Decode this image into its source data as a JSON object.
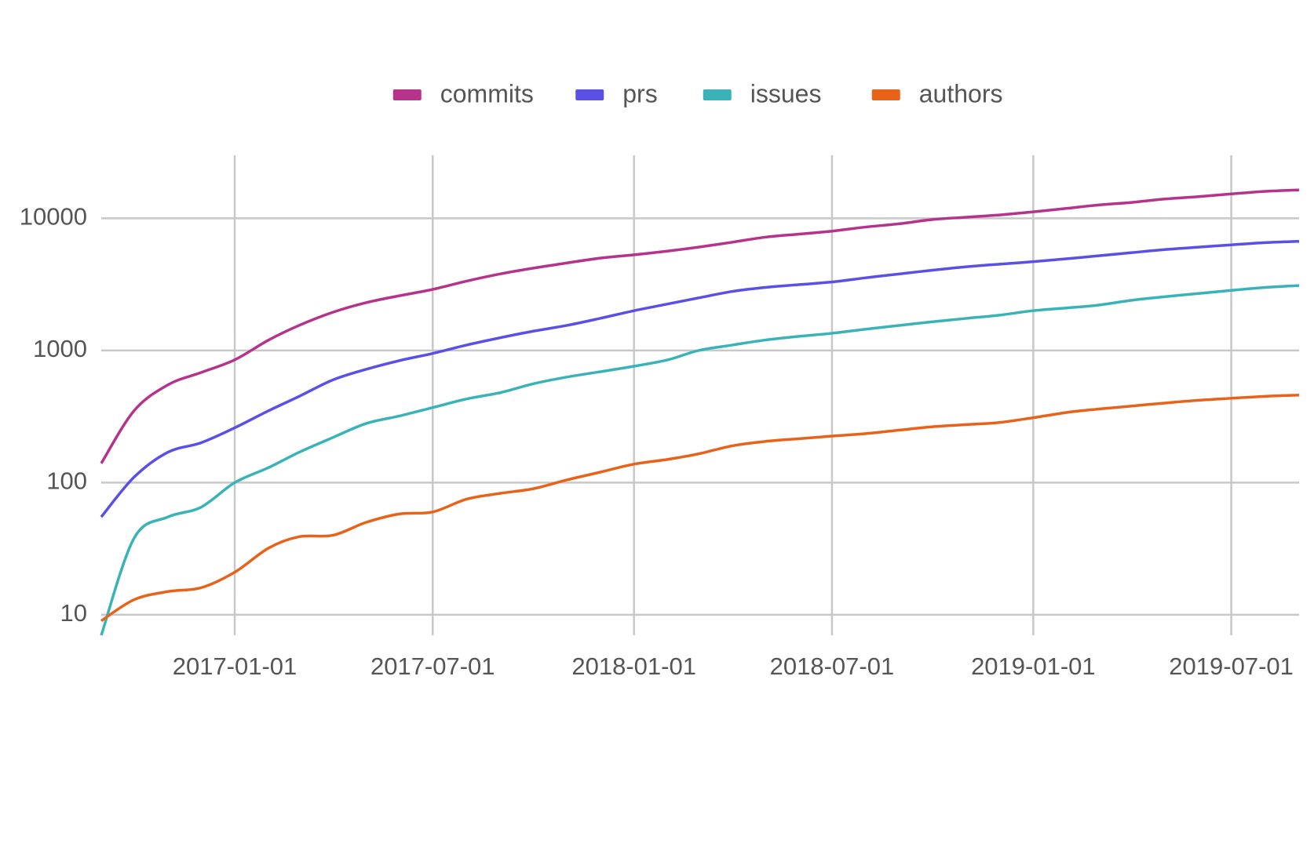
{
  "chart_data": {
    "type": "line",
    "log_y": true,
    "grid": true,
    "legend": "top",
    "x": [
      "2016-09-01",
      "2016-10-01",
      "2016-11-01",
      "2016-12-01",
      "2017-01-01",
      "2017-02-01",
      "2017-03-01",
      "2017-04-01",
      "2017-05-01",
      "2017-06-01",
      "2017-07-01",
      "2017-08-01",
      "2017-09-01",
      "2017-10-01",
      "2017-11-01",
      "2017-12-01",
      "2018-01-01",
      "2018-02-01",
      "2018-03-01",
      "2018-04-01",
      "2018-05-01",
      "2018-06-01",
      "2018-07-01",
      "2018-08-01",
      "2018-09-01",
      "2018-10-01",
      "2018-11-01",
      "2018-12-01",
      "2019-01-01",
      "2019-02-01",
      "2019-03-01",
      "2019-04-01",
      "2019-05-01",
      "2019-06-01",
      "2019-07-01",
      "2019-08-01",
      "2019-09-01"
    ],
    "xlim": [
      "2016-09-01",
      "2019-09-01"
    ],
    "xticks": [
      "2017-01-01",
      "2017-07-01",
      "2018-01-01",
      "2018-07-01",
      "2019-01-01",
      "2019-07-01"
    ],
    "ylim": [
      7,
      30000
    ],
    "yticks": [
      10,
      100,
      1000,
      10000
    ],
    "series": [
      {
        "name": "commits",
        "color": "#b5338a",
        "values": [
          140,
          350,
          550,
          680,
          850,
          1200,
          1550,
          1950,
          2300,
          2600,
          2900,
          3350,
          3800,
          4200,
          4600,
          5000,
          5300,
          5650,
          6050,
          6600,
          7200,
          7600,
          8000,
          8600,
          9100,
          9800,
          10200,
          10600,
          11200,
          11900,
          12600,
          13200,
          14000,
          14600,
          15300,
          16000,
          16400
        ]
      },
      {
        "name": "prs",
        "color": "#5a4fe6",
        "values": [
          55,
          110,
          170,
          200,
          260,
          350,
          450,
          600,
          720,
          840,
          950,
          1100,
          1250,
          1400,
          1550,
          1750,
          2000,
          2250,
          2500,
          2800,
          3000,
          3150,
          3300,
          3550,
          3800,
          4050,
          4300,
          4500,
          4700,
          4950,
          5200,
          5500,
          5800,
          6050,
          6300,
          6550,
          6700
        ]
      },
      {
        "name": "issues",
        "color": "#3ab3b8",
        "values": [
          7,
          38,
          55,
          65,
          100,
          130,
          170,
          220,
          280,
          320,
          370,
          430,
          480,
          560,
          630,
          690,
          760,
          850,
          1000,
          1100,
          1200,
          1280,
          1350,
          1450,
          1550,
          1650,
          1750,
          1850,
          2000,
          2100,
          2200,
          2400,
          2550,
          2700,
          2850,
          3000,
          3100
        ]
      },
      {
        "name": "authors",
        "color": "#e8621a",
        "values": [
          9,
          13,
          15,
          16,
          21,
          32,
          39,
          40,
          50,
          58,
          60,
          75,
          83,
          90,
          105,
          120,
          138,
          150,
          165,
          190,
          205,
          215,
          225,
          235,
          250,
          265,
          275,
          285,
          310,
          340,
          360,
          380,
          400,
          420,
          435,
          450,
          460
        ]
      }
    ]
  }
}
